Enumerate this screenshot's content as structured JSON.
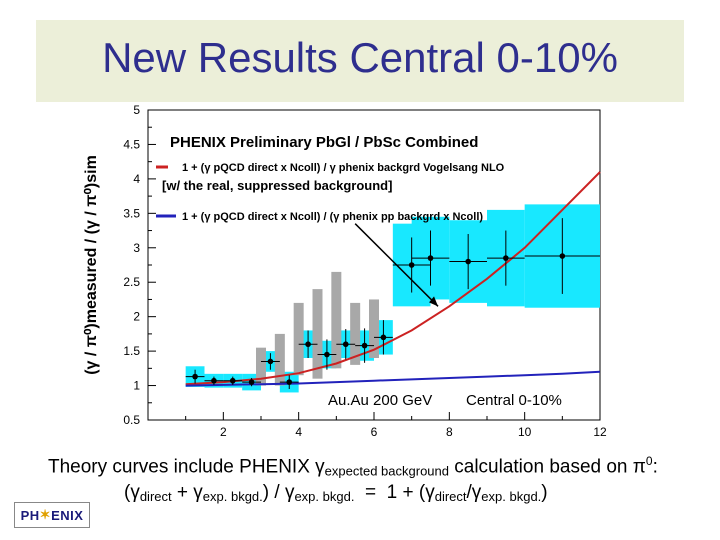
{
  "slide": {
    "title": "New Results Central 0-10%",
    "caption_line1": {
      "pre": "Theory curves include PHENIX ",
      "gamma": "γ",
      "sub": "expected background",
      "post": " calculation based on π",
      "sup": "0",
      "end": ":"
    },
    "caption_line2": {
      "open": "(γ",
      "sub1": "direct",
      "plus": " + γ",
      "sub2": "exp. bkgd.",
      "mid": ") / γ",
      "sub3": "exp. bkgd.",
      "eq": "  =  1 + (γ",
      "sub4": "direct",
      "slash": "/γ",
      "sub5": "exp. bkgd.",
      "close": ")"
    },
    "logo_left": "PH",
    "logo_star": "✶",
    "logo_right": "ENIX"
  },
  "chart_data": {
    "type": "scatter",
    "title": "",
    "xlabel": "",
    "ylabel": "(γ / π⁰)measured / (γ / π⁰)sim",
    "xlim": [
      0,
      12
    ],
    "ylim": [
      0.5,
      5
    ],
    "x_ticks": [
      2,
      4,
      6,
      8,
      10,
      12
    ],
    "y_ticks": [
      0.5,
      1,
      1.5,
      2,
      2.5,
      3,
      3.5,
      4,
      4.5,
      5
    ],
    "grid": false,
    "annotations": {
      "header": "PHENIX Preliminary PbGl / PbSc Combined",
      "legend_red": "1 + (γ pQCD direct x Ncoll) / γ phenix backgrd  Vogelsang NLO",
      "legend_red2": "[w/ the real, suppressed background]",
      "legend_blue": "1 +  (γ pQCD direct x Ncoll) / (γ phenix pp backgrd x Ncoll)",
      "system": "Au.Au 200 GeV",
      "centrality": "Central  0-10%"
    },
    "series": [
      {
        "points": [
          {
            "x": 1.25,
            "y": 1.13,
            "ex": 0.25,
            "ey": 0.1,
            "sys": 0.15
          },
          {
            "x": 1.75,
            "y": 1.07,
            "ex": 0.25,
            "ey": 0.06,
            "sys": 0.1
          },
          {
            "x": 2.25,
            "y": 1.07,
            "ex": 0.25,
            "ey": 0.06,
            "sys": 0.1
          },
          {
            "x": 2.75,
            "y": 1.05,
            "ex": 0.25,
            "ey": 0.06,
            "sys": 0.12
          },
          {
            "x": 3.25,
            "y": 1.35,
            "ex": 0.25,
            "ey": 0.12,
            "sys": 0.15
          },
          {
            "x": 3.75,
            "y": 1.05,
            "ex": 0.25,
            "ey": 0.1,
            "sys": 0.15
          },
          {
            "x": 4.25,
            "y": 1.6,
            "ex": 0.25,
            "ey": 0.2,
            "sys": 0.2
          },
          {
            "x": 4.75,
            "y": 1.45,
            "ex": 0.25,
            "ey": 0.22,
            "sys": 0.2
          },
          {
            "x": 5.25,
            "y": 1.6,
            "ex": 0.25,
            "ey": 0.22,
            "sys": 0.2
          },
          {
            "x": 5.75,
            "y": 1.58,
            "ex": 0.25,
            "ey": 0.25,
            "sys": 0.22
          },
          {
            "x": 6.25,
            "y": 1.7,
            "ex": 0.25,
            "ey": 0.25,
            "sys": 0.25
          },
          {
            "x": 7.0,
            "y": 2.75,
            "ex": 0.5,
            "ey": 0.4,
            "sys": 0.6
          },
          {
            "x": 7.5,
            "y": 2.85,
            "ex": 0.5,
            "ey": 0.4,
            "sys": 0.6
          },
          {
            "x": 8.5,
            "y": 2.8,
            "ex": 0.5,
            "ey": 0.4,
            "sys": 0.6
          },
          {
            "x": 9.5,
            "y": 2.85,
            "ex": 0.5,
            "ey": 0.4,
            "sys": 0.7
          },
          {
            "x": 11.0,
            "y": 2.88,
            "ex": 1.0,
            "ey": 0.55,
            "sys": 0.75
          }
        ],
        "gray_sys": [
          {
            "x": 3.0,
            "lo": 1.0,
            "hi": 1.55
          },
          {
            "x": 3.5,
            "lo": 1.0,
            "hi": 1.75
          },
          {
            "x": 4.0,
            "lo": 1.15,
            "hi": 2.2
          },
          {
            "x": 4.5,
            "lo": 1.1,
            "hi": 2.4
          },
          {
            "x": 5.0,
            "lo": 1.25,
            "hi": 2.65
          },
          {
            "x": 5.5,
            "lo": 1.3,
            "hi": 2.2
          },
          {
            "x": 6.0,
            "lo": 1.4,
            "hi": 2.25
          }
        ]
      }
    ],
    "curves": [
      {
        "color": "#cc2222",
        "x": [
          1,
          2,
          3,
          4,
          5,
          6,
          7,
          8,
          9,
          10,
          11,
          12
        ],
        "y": [
          1.02,
          1.05,
          1.1,
          1.18,
          1.32,
          1.52,
          1.8,
          2.15,
          2.55,
          3.0,
          3.55,
          4.1
        ]
      },
      {
        "color": "#2222bb",
        "x": [
          1,
          2,
          3,
          4,
          5,
          6,
          7,
          8,
          9,
          10,
          11,
          12
        ],
        "y": [
          1.0,
          1.01,
          1.02,
          1.03,
          1.05,
          1.07,
          1.09,
          1.11,
          1.13,
          1.15,
          1.17,
          1.2
        ]
      }
    ],
    "arrow": {
      "from_x": 5.5,
      "from_y": 3.35,
      "to_x": 7.7,
      "to_y": 2.15
    }
  }
}
